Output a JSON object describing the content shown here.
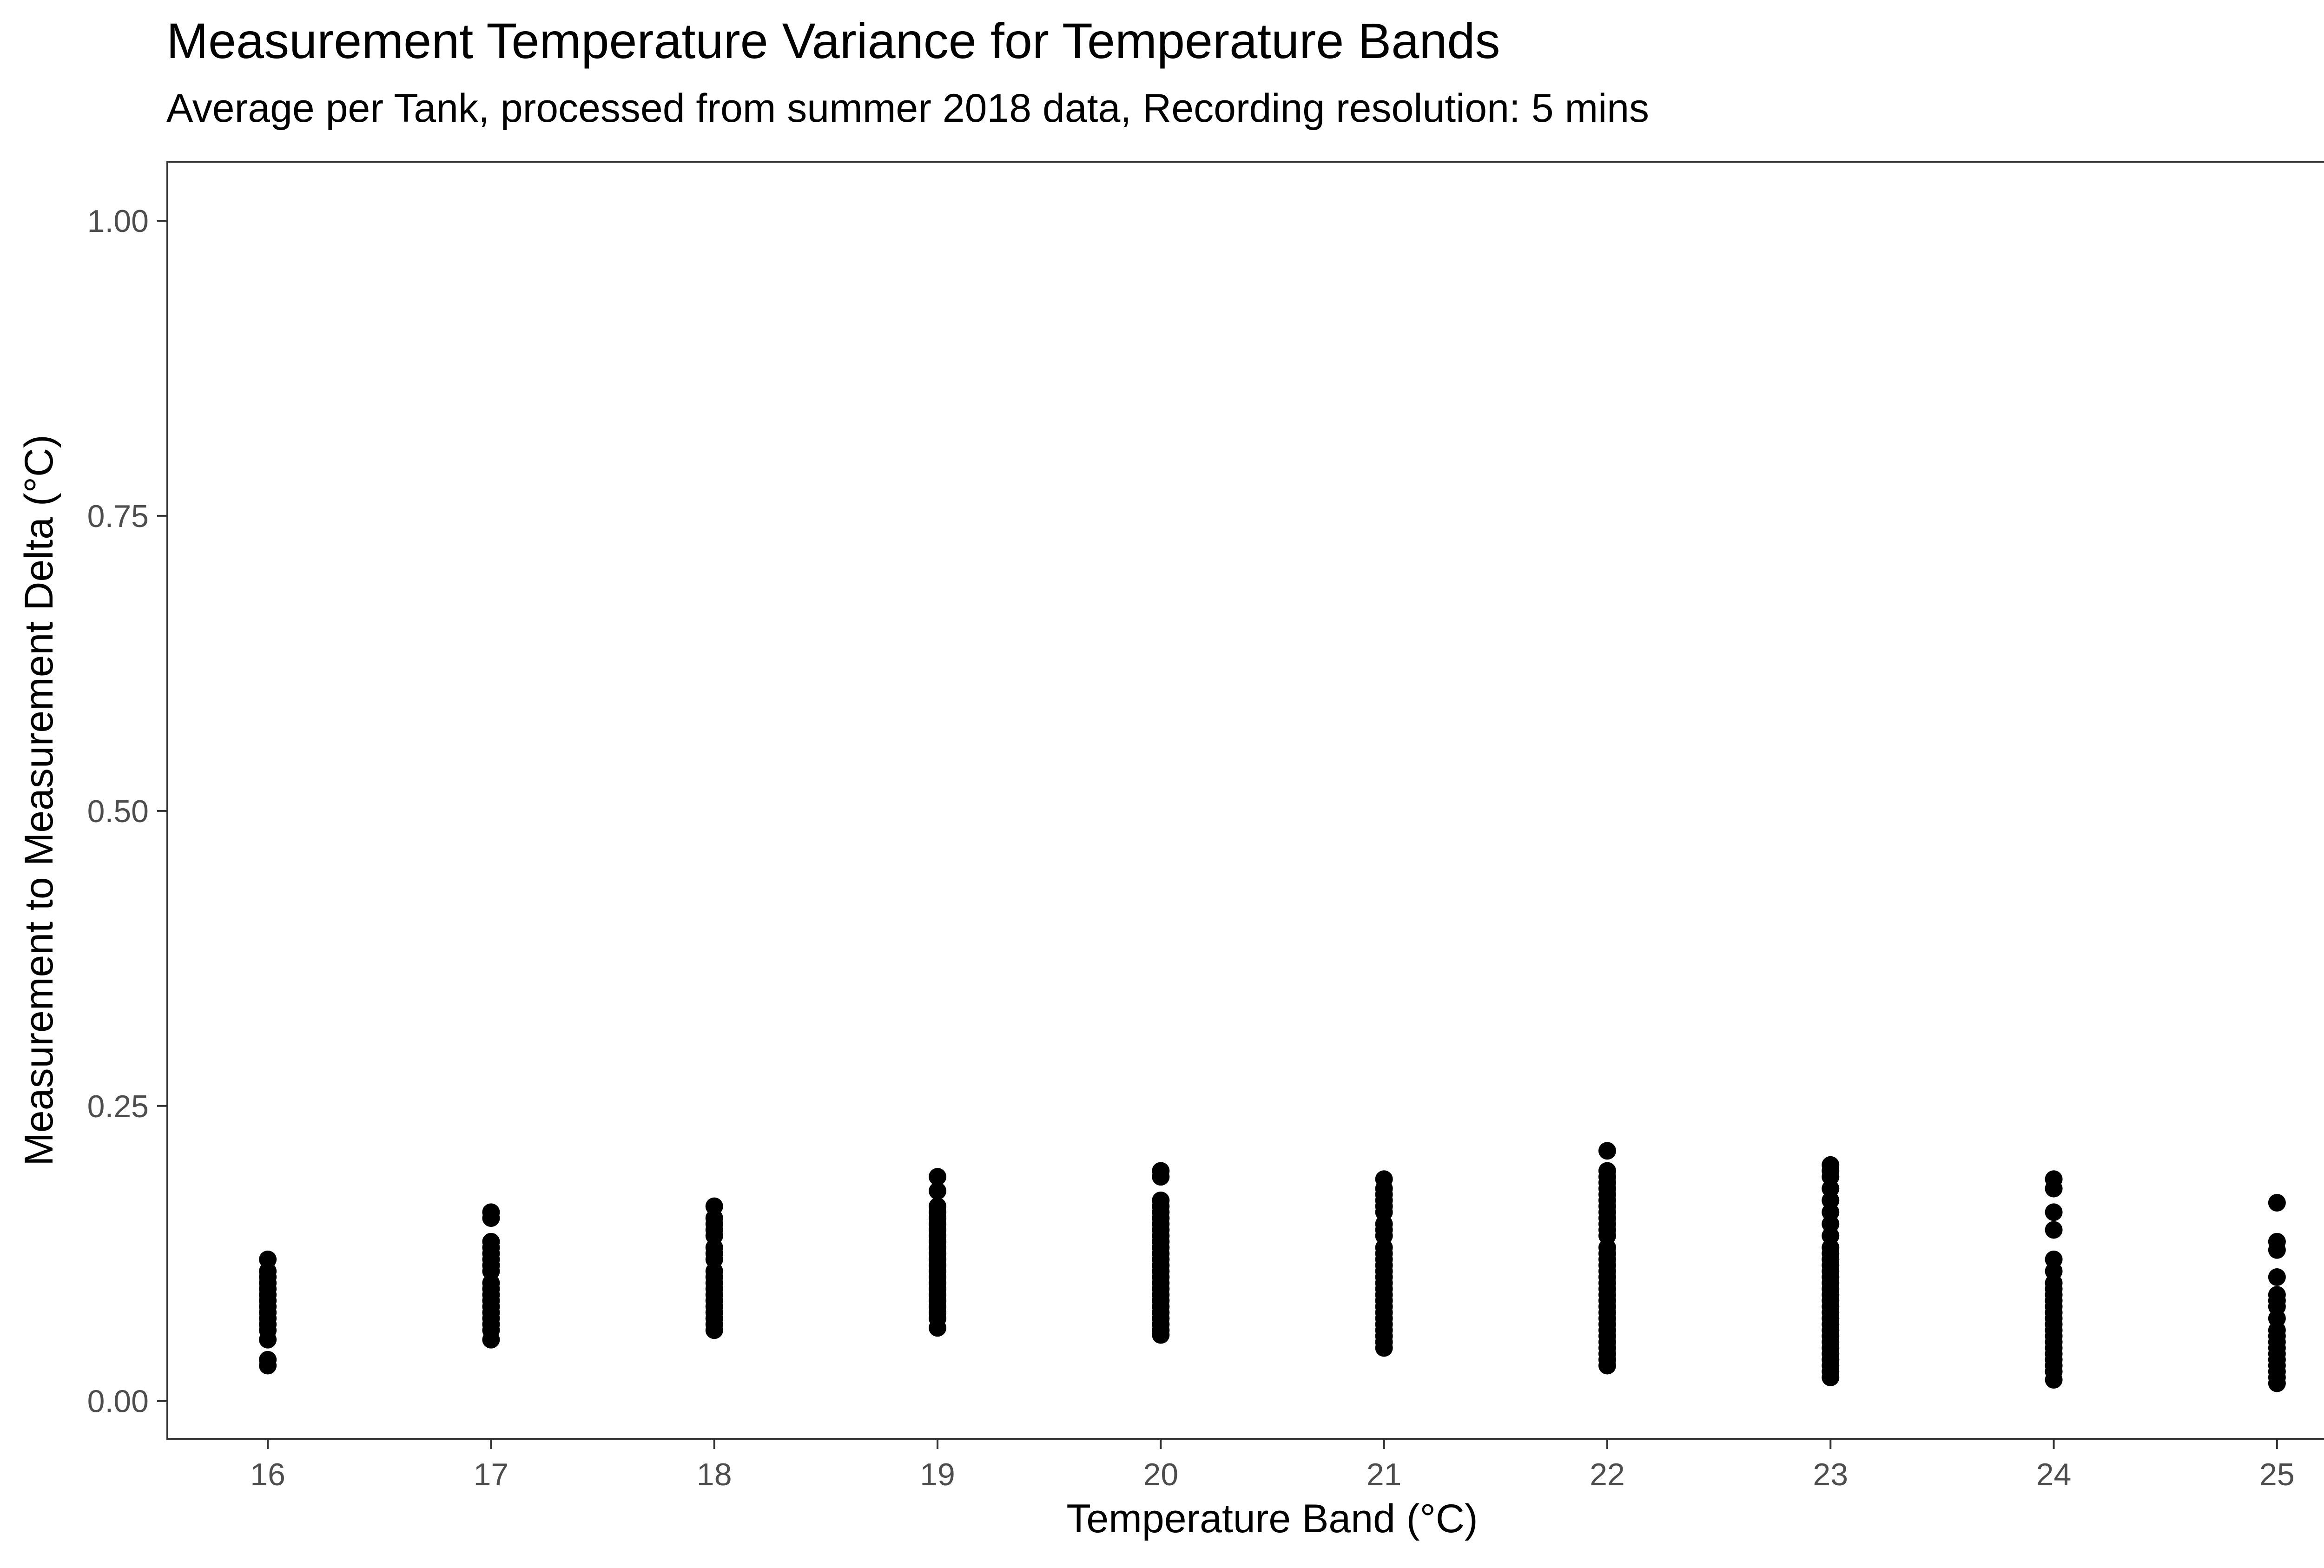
{
  "chart_data": {
    "type": "scatter",
    "title": "Measurement Temperature Variance for Temperature Bands",
    "subtitle": "Average per Tank, processed from summer 2018 data, Recording resolution: 5 mins",
    "xlabel": "Temperature Band (°C)",
    "ylabel": "Measurement to Measurement Delta (°C)",
    "xlim": [
      15.55,
      25.45
    ],
    "ylim": [
      -0.032,
      1.05
    ],
    "x_ticks": [
      "16",
      "17",
      "18",
      "19",
      "20",
      "21",
      "22",
      "23",
      "24",
      "25"
    ],
    "y_ticks": [
      "0.00",
      "0.25",
      "0.50",
      "0.75",
      "1.00"
    ],
    "grid": false,
    "point_color": "#000000",
    "series": [
      {
        "points": [
          {
            "x": 16,
            "y": [
              0.03,
              0.035,
              0.052,
              0.06,
              0.065,
              0.07,
              0.075,
              0.08,
              0.085,
              0.09,
              0.095,
              0.1,
              0.105,
              0.11,
              0.12
            ]
          },
          {
            "x": 17,
            "y": [
              0.052,
              0.06,
              0.065,
              0.07,
              0.075,
              0.08,
              0.085,
              0.09,
              0.095,
              0.1,
              0.11,
              0.115,
              0.12,
              0.125,
              0.13,
              0.135,
              0.155,
              0.16
            ]
          },
          {
            "x": 18,
            "y": [
              0.06,
              0.065,
              0.07,
              0.075,
              0.08,
              0.085,
              0.09,
              0.095,
              0.1,
              0.105,
              0.11,
              0.12,
              0.125,
              0.13,
              0.14,
              0.145,
              0.15,
              0.155,
              0.165
            ]
          },
          {
            "x": 19,
            "y": [
              0.062,
              0.07,
              0.075,
              0.08,
              0.085,
              0.09,
              0.095,
              0.1,
              0.105,
              0.11,
              0.115,
              0.12,
              0.125,
              0.13,
              0.135,
              0.14,
              0.145,
              0.15,
              0.155,
              0.16,
              0.165,
              0.178,
              0.19
            ]
          },
          {
            "x": 20,
            "y": [
              0.056,
              0.06,
              0.065,
              0.07,
              0.075,
              0.08,
              0.085,
              0.09,
              0.095,
              0.1,
              0.105,
              0.11,
              0.115,
              0.12,
              0.125,
              0.13,
              0.135,
              0.14,
              0.145,
              0.15,
              0.155,
              0.16,
              0.165,
              0.17,
              0.19,
              0.195
            ]
          },
          {
            "x": 21,
            "y": [
              0.045,
              0.05,
              0.055,
              0.06,
              0.065,
              0.07,
              0.075,
              0.08,
              0.085,
              0.09,
              0.095,
              0.1,
              0.105,
              0.11,
              0.115,
              0.12,
              0.125,
              0.13,
              0.14,
              0.145,
              0.15,
              0.16,
              0.165,
              0.17,
              0.175,
              0.18,
              0.188
            ]
          },
          {
            "x": 22,
            "y": [
              0.03,
              0.035,
              0.04,
              0.045,
              0.05,
              0.055,
              0.06,
              0.065,
              0.07,
              0.075,
              0.08,
              0.085,
              0.09,
              0.095,
              0.1,
              0.105,
              0.11,
              0.115,
              0.12,
              0.125,
              0.13,
              0.14,
              0.145,
              0.15,
              0.155,
              0.16,
              0.165,
              0.17,
              0.175,
              0.18,
              0.185,
              0.19,
              0.195,
              0.212
            ]
          },
          {
            "x": 23,
            "y": [
              0.02,
              0.025,
              0.03,
              0.035,
              0.04,
              0.045,
              0.05,
              0.055,
              0.06,
              0.065,
              0.07,
              0.075,
              0.08,
              0.085,
              0.09,
              0.095,
              0.1,
              0.105,
              0.11,
              0.115,
              0.12,
              0.125,
              0.13,
              0.14,
              0.15,
              0.16,
              0.17,
              0.18,
              0.19,
              0.195,
              0.2
            ]
          },
          {
            "x": 24,
            "y": [
              0.018,
              0.025,
              0.03,
              0.035,
              0.04,
              0.045,
              0.05,
              0.055,
              0.06,
              0.065,
              0.07,
              0.075,
              0.08,
              0.085,
              0.09,
              0.095,
              0.1,
              0.11,
              0.12,
              0.145,
              0.16,
              0.18,
              0.188
            ]
          },
          {
            "x": 25,
            "y": [
              0.015,
              0.02,
              0.025,
              0.03,
              0.035,
              0.04,
              0.045,
              0.05,
              0.055,
              0.06,
              0.07,
              0.08,
              0.085,
              0.09,
              0.105,
              0.128,
              0.135,
              0.168
            ]
          }
        ]
      }
    ]
  }
}
